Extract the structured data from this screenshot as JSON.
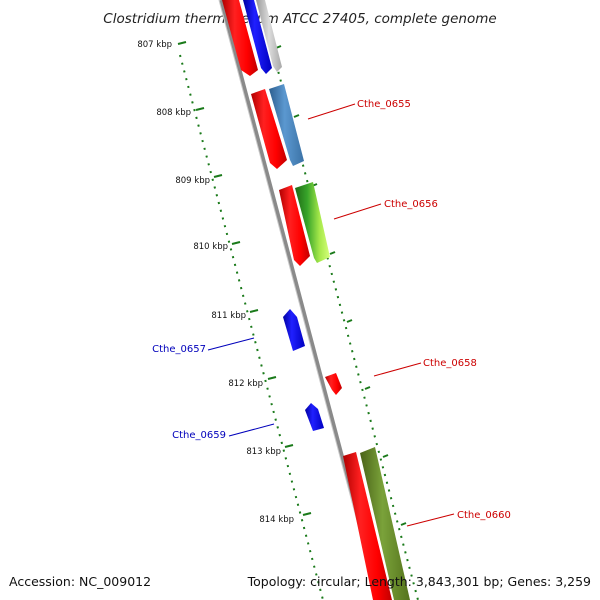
{
  "title": "Clostridium thermocellum ATCC 27405, complete genome",
  "accession": "Accession: NC_009012",
  "topology": "Topology: circular; Length: 3,843,301 bp; Genes: 3,259",
  "colors": {
    "forward_label": "#cc0000",
    "reverse_label": "#0000bb",
    "backbone": "#888888",
    "tick": "#1a7a1a",
    "red": "#ff0000",
    "blue": "#0000ff",
    "grey": "#c0c0c0",
    "steelblue": "#4a86c0",
    "green": "#3a9a2a",
    "olive": "#6b8e23"
  },
  "kbp_ticks": [
    "807 kbp",
    "808 kbp",
    "809 kbp",
    "810 kbp",
    "811 kbp",
    "812 kbp",
    "813 kbp",
    "814 kbp"
  ],
  "gene_labels": [
    {
      "text": "Cthe_0655",
      "strand": "forward"
    },
    {
      "text": "Cthe_0656",
      "strand": "forward"
    },
    {
      "text": "Cthe_0657",
      "strand": "reverse"
    },
    {
      "text": "Cthe_0658",
      "strand": "forward"
    },
    {
      "text": "Cthe_0659",
      "strand": "reverse"
    },
    {
      "text": "Cthe_0660",
      "strand": "forward"
    }
  ]
}
